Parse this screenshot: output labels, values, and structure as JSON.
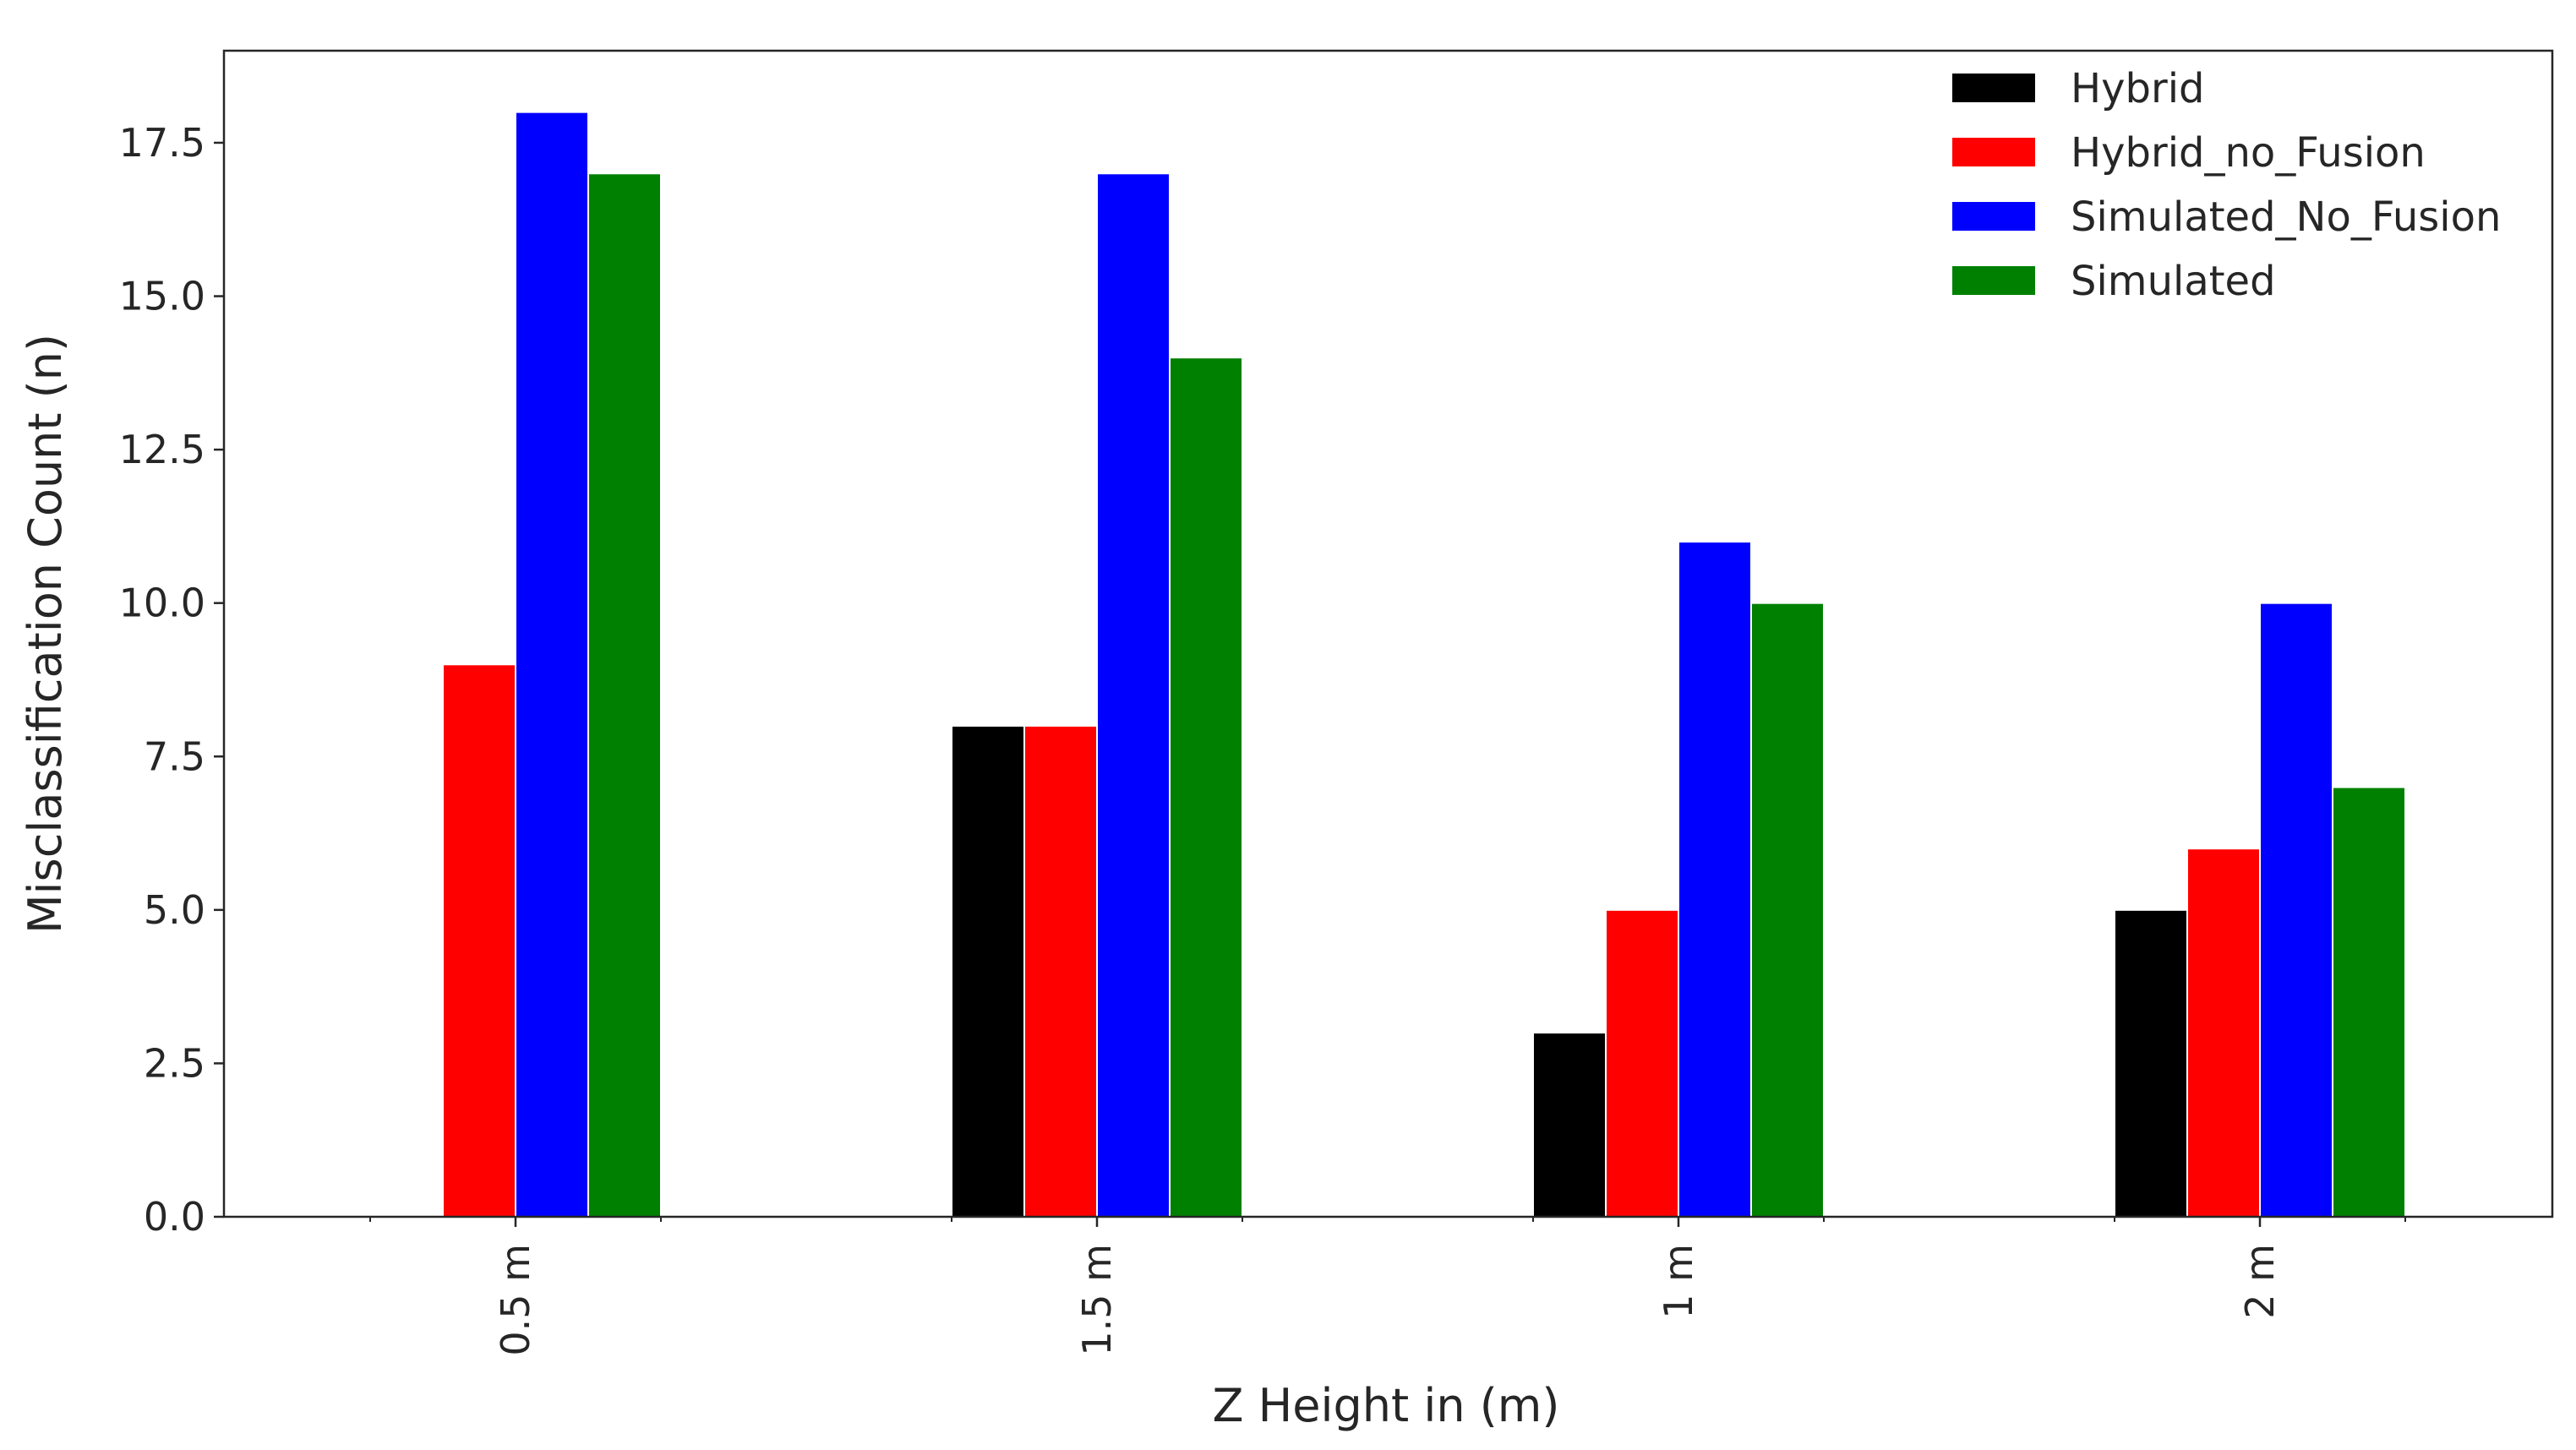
{
  "chart_data": {
    "type": "bar",
    "title": "",
    "xlabel": "Z Height in (m)",
    "ylabel": "Misclassification Count (n)",
    "categories": [
      "0.5 m",
      "1.5 m",
      "1 m",
      "2 m"
    ],
    "ylim": [
      0,
      19
    ],
    "yticks": [
      "0.0",
      "2.5",
      "5.0",
      "7.5",
      "10.0",
      "12.5",
      "15.0",
      "17.5"
    ],
    "legend_position": "top-right",
    "grid": false,
    "series": [
      {
        "name": "Hybrid",
        "color": "#000000",
        "values": [
          0,
          8,
          3,
          5
        ]
      },
      {
        "name": "Hybrid_no_Fusion",
        "color": "#ff0000",
        "values": [
          9,
          8,
          5,
          6
        ]
      },
      {
        "name": "Simulated_No_Fusion",
        "color": "#0000ff",
        "values": [
          18,
          17,
          11,
          10
        ]
      },
      {
        "name": "Simulated",
        "color": "#008000",
        "values": [
          17,
          14,
          10,
          7
        ]
      }
    ]
  }
}
